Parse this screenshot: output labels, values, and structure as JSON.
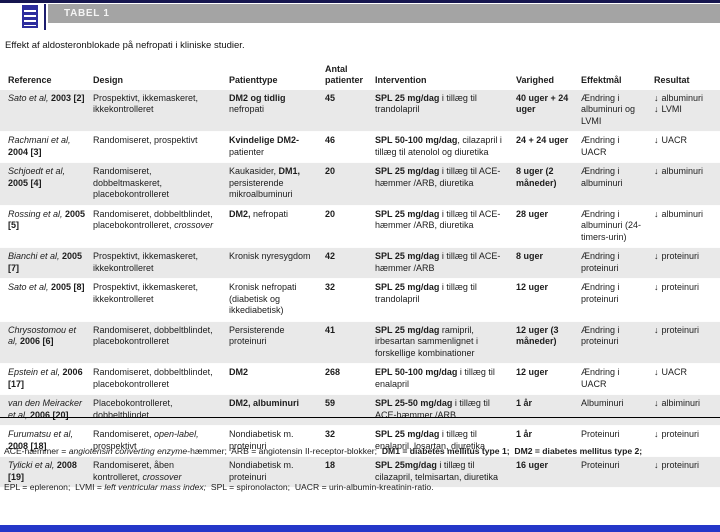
{
  "header": {
    "title": "TABEL 1"
  },
  "caption": "Effekt af aldosteronblokade på nefropati i kliniske studier.",
  "icons": {
    "table_icon": "blue document with horizontal lines",
    "down_arrow": "↓"
  },
  "colors": {
    "top_border": "#16164f",
    "title_bar_gray": "#a4a4a4",
    "icon_blue": "#2c2c9e",
    "alt_row_gray": "#e9e9e9",
    "bottom_bar_blue": "#2437c9"
  },
  "table": {
    "columns": [
      "Reference",
      "Design",
      "Patienttype",
      "Antal patienter",
      "Intervention",
      "Varighed",
      "Effektmål",
      "Resultat"
    ],
    "rows": [
      {
        "reference": [
          {
            "t": "Sato et al, ",
            "i": true
          },
          {
            "t": "2003 [2]",
            "b": true
          }
        ],
        "design": [
          {
            "t": "Prospektivt, ikkemaskeret, ikkekontrolleret"
          }
        ],
        "patienttype": [
          {
            "t": "DM2 og tidlig",
            "b": true
          },
          {
            "t": " nefropati"
          }
        ],
        "patients": "45",
        "intervention": [
          {
            "t": "SPL 25 mg/dag",
            "b": true
          },
          {
            "t": " i tillæg til trandolapril"
          }
        ],
        "duration": "40 uger + 24 uger",
        "endpoint": "Ændring i albuminuri og LVMI",
        "results": [
          "albuminuri",
          "LVMI"
        ]
      },
      {
        "reference": [
          {
            "t": "Rachmani et al, ",
            "i": true
          },
          {
            "t": "2004 [3]",
            "b": true
          }
        ],
        "design": [
          {
            "t": "Randomiseret, prospektivt"
          }
        ],
        "patienttype": [
          {
            "t": "Kvindelige DM2-",
            "b": true
          },
          {
            "t": "patienter"
          }
        ],
        "patients": "46",
        "intervention": [
          {
            "t": "SPL 50-100 mg/dag",
            "b": true
          },
          {
            "t": ", cilazapril i tillæg til atenolol og diuretika"
          }
        ],
        "duration": "24 + 24 uger",
        "endpoint": "Ændring i UACR",
        "results": [
          "UACR"
        ]
      },
      {
        "reference": [
          {
            "t": "Schjoedt et al, ",
            "i": true
          },
          {
            "t": "2005 [4]",
            "b": true
          }
        ],
        "design": [
          {
            "t": "Randomiseret, dobbeltmaskeret, placebokontrolleret"
          }
        ],
        "patienttype": [
          {
            "t": "Kaukasider, "
          },
          {
            "t": "DM1,",
            "b": true
          },
          {
            "t": " persisterende mikroalbuminuri"
          }
        ],
        "patients": "20",
        "intervention": [
          {
            "t": "SPL 25 mg/dag",
            "b": true
          },
          {
            "t": " i tillæg til ACE-hæmmer /ARB, diuretika"
          }
        ],
        "duration": "8 uger (2 måneder)",
        "endpoint": "Ændring i albuminuri",
        "results": [
          "albuminuri"
        ]
      },
      {
        "reference": [
          {
            "t": "Rossing et al, ",
            "i": true
          },
          {
            "t": "2005 [5]",
            "b": true
          }
        ],
        "design": [
          {
            "t": "Randomiseret, dobbeltblindet, placebokontrolleret, "
          },
          {
            "t": "crossover",
            "i": true
          }
        ],
        "patienttype": [
          {
            "t": "DM2,",
            "b": true
          },
          {
            "t": " nefropati"
          }
        ],
        "patients": "20",
        "intervention": [
          {
            "t": "SPL 25 mg/dag",
            "b": true
          },
          {
            "t": " i tillæg til ACE-hæmmer /ARB, diuretika"
          }
        ],
        "duration": "28 uger",
        "endpoint": "Ændring i albuminuri (24-timers-urin)",
        "results": [
          "albuminuri"
        ]
      },
      {
        "reference": [
          {
            "t": "Bianchi et al, ",
            "i": true
          },
          {
            "t": "2005 [7]",
            "b": true
          }
        ],
        "design": [
          {
            "t": "Prospektivt, ikkemaskeret, ikkekontrolleret"
          }
        ],
        "patienttype": [
          {
            "t": "Kronisk nyresygdom"
          }
        ],
        "patients": "42",
        "intervention": [
          {
            "t": "SPL 25 mg/dag",
            "b": true
          },
          {
            "t": " i tillæg til ACE-hæmmer /ARB"
          }
        ],
        "duration": "8 uger",
        "endpoint": "Ændring i proteinuri",
        "results": [
          "proteinuri"
        ]
      },
      {
        "reference": [
          {
            "t": "Sato et al, ",
            "i": true
          },
          {
            "t": "2005 [8]",
            "b": true
          }
        ],
        "design": [
          {
            "t": "Prospektivt, ikkemaskeret, ikkekontrolleret"
          }
        ],
        "patienttype": [
          {
            "t": "Kronisk nefropati (diabetisk og ikkediabetisk)"
          }
        ],
        "patients": "32",
        "intervention": [
          {
            "t": "SPL 25 mg/dag",
            "b": true
          },
          {
            "t": " i tillæg til trandolapril"
          }
        ],
        "duration": "12 uger",
        "endpoint": "Ændring i proteinuri",
        "results": [
          "proteinuri"
        ]
      },
      {
        "reference": [
          {
            "t": "Chrysostomou et al, ",
            "i": true
          },
          {
            "t": "2006 [6]",
            "b": true
          }
        ],
        "design": [
          {
            "t": "Randomiseret, dobbeltblindet, placebokontrolleret"
          }
        ],
        "patienttype": [
          {
            "t": "Persisterende proteinuri"
          }
        ],
        "patients": "41",
        "intervention": [
          {
            "t": "SPL 25 mg/dag",
            "b": true
          },
          {
            "t": " ramipril, irbesartan  sammenlignet i forskellige kombinationer"
          }
        ],
        "duration": "12 uger (3 måneder)",
        "endpoint": "Ændring i proteinuri",
        "results": [
          "proteinuri"
        ]
      },
      {
        "reference": [
          {
            "t": "Epstein et al, ",
            "i": true
          },
          {
            "t": "2006 [17]",
            "b": true
          }
        ],
        "design": [
          {
            "t": "Randomiseret, dobbeltblindet, placebokontrolleret"
          }
        ],
        "patienttype": [
          {
            "t": "DM2",
            "b": true
          }
        ],
        "patients": "268",
        "intervention": [
          {
            "t": "EPL 50-100 mg/dag",
            "b": true
          },
          {
            "t": " i tillæg til enalapril"
          }
        ],
        "duration": "12 uger",
        "endpoint": "Ændring i UACR",
        "results": [
          "UACR"
        ]
      },
      {
        "reference": [
          {
            "t": "van den Meiracker et al, ",
            "i": true
          },
          {
            "t": "2006 [20]",
            "b": true
          }
        ],
        "design": [
          {
            "t": "Placebokontrolleret, dobbeltblindet"
          }
        ],
        "patienttype": [
          {
            "t": "DM2, albuminuri",
            "b": true
          }
        ],
        "patients": "59",
        "intervention": [
          {
            "t": "SPL 25-50 mg/dag",
            "b": true
          },
          {
            "t": " i tillæg til ACE-hæmmer /ARB"
          }
        ],
        "duration": "1 år",
        "endpoint": "Albuminuri",
        "results": [
          "albiminuri"
        ]
      },
      {
        "reference": [
          {
            "t": "Furumatsu et al, ",
            "i": true
          },
          {
            "t": "2008 [18]",
            "b": true
          }
        ],
        "design": [
          {
            "t": "Randomiseret, "
          },
          {
            "t": "open-label,",
            "i": true
          },
          {
            "t": " prospektivt"
          }
        ],
        "patienttype": [
          {
            "t": "Nondiabetisk m. proteinuri"
          }
        ],
        "patients": "32",
        "intervention": [
          {
            "t": "SPL 25 mg/dag",
            "b": true
          },
          {
            "t": " i tillæg til enalapril, losartan, diuretika"
          }
        ],
        "duration": "1 år",
        "endpoint": "Proteinuri",
        "results": [
          "proteinuri"
        ]
      },
      {
        "reference": [
          {
            "t": "Tylicki et al, ",
            "i": true
          },
          {
            "t": "2008 [19]",
            "b": true
          }
        ],
        "design": [
          {
            "t": "Randomiseret, åben kontrolleret, "
          },
          {
            "t": "crossover",
            "i": true
          }
        ],
        "patienttype": [
          {
            "t": "Nondiabetisk m. proteinuri"
          }
        ],
        "patients": "18",
        "intervention": [
          {
            "t": "SPL 25mg/dag",
            "b": true
          },
          {
            "t": " i tillæg til cilazapril, telmisartan, diuretika"
          }
        ],
        "duration": "16 uger",
        "endpoint": "Proteinuri",
        "results": [
          "proteinuri"
        ]
      }
    ]
  },
  "footnotes": [
    [
      {
        "t": "ACE-hæmmer = "
      },
      {
        "t": "angiotensin converting enzyme",
        "i": true
      },
      {
        "t": "-hæmmer;  ARB = angiotensin II-receptor-blokker;  "
      },
      {
        "t": "DM1 = diabetes mellitus type 1;  DM2 = diabetes mellitus type 2;",
        "b": true
      }
    ],
    [
      {
        "t": "EPL = eplerenon;  LVMI = "
      },
      {
        "t": "left ventricular mass index;",
        "i": true
      },
      {
        "t": "  SPL = spironolacton;  UACR = urin-albumin-kreatinin-ratio."
      }
    ]
  ]
}
